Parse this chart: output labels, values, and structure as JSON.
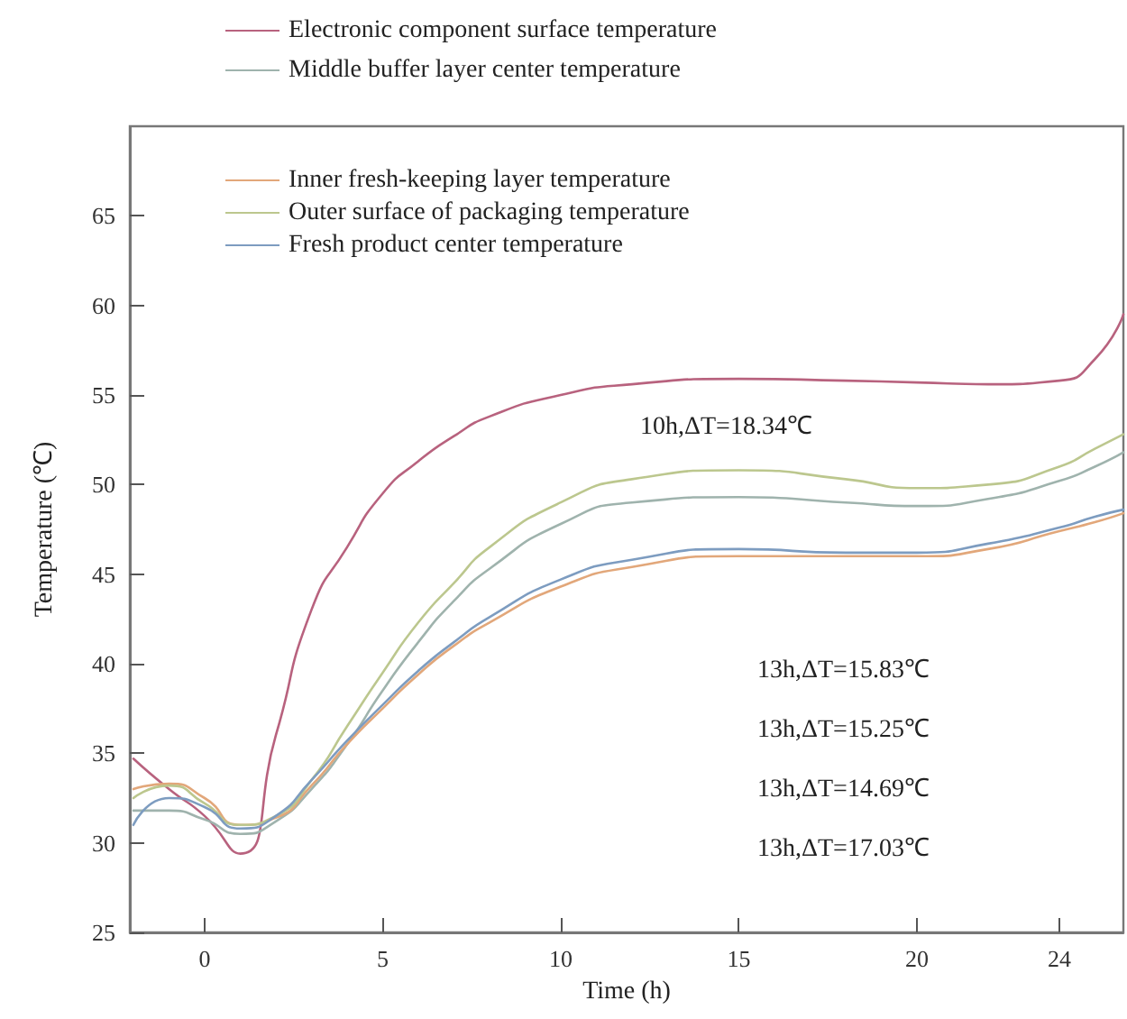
{
  "chart_data": {
    "type": "line",
    "xlabel": "Time (h)",
    "ylabel": "Temperature (℃)",
    "xlim": [
      -2.1,
      25.8
    ],
    "xticks": [
      0,
      5,
      10,
      15,
      20,
      24
    ],
    "ylim": [
      25,
      70
    ],
    "yticks": [
      25,
      30,
      35,
      40,
      45,
      50,
      55,
      60,
      65
    ],
    "grid": false,
    "legend": "top left",
    "marker": "none",
    "line_style": "solid",
    "x": [
      -2,
      -1,
      0,
      1,
      2,
      3,
      4,
      5,
      6,
      7,
      8,
      10,
      12,
      15,
      18,
      20,
      22,
      24,
      25,
      25.8
    ],
    "series": [
      {
        "name": "Electronic component surface temperature",
        "color": "#b8627e",
        "values": [
          34.7,
          33,
          31.5,
          29.4,
          36,
          43,
          46.5,
          49.5,
          51.3,
          52.7,
          53.8,
          55,
          55.6,
          55.9,
          55.8,
          55.7,
          55.6,
          55.8,
          57,
          59.5
        ]
      },
      {
        "name": "Middle buffer layer center temperature",
        "color": "#9fb3ad",
        "values": [
          31.8,
          31.8,
          31.3,
          30.5,
          31.2,
          33,
          35.5,
          38.5,
          41.2,
          43.5,
          45.3,
          47.8,
          49,
          49.3,
          49,
          48.8,
          49.2,
          50.2,
          51,
          51.8
        ]
      },
      {
        "name": "Inner fresh-keeping layer temperature",
        "color": "#e2a77a",
        "values": [
          33,
          33.3,
          32.5,
          31,
          31.4,
          33.2,
          35.5,
          37.5,
          39.4,
          41,
          42.3,
          44.3,
          45.4,
          46,
          46,
          46,
          46.4,
          47.4,
          47.9,
          48.4
        ]
      },
      {
        "name": "Outer surface of packaging temperature",
        "color": "#bcc78e",
        "values": [
          32.5,
          33.2,
          32.2,
          31,
          31.5,
          33.5,
          36.5,
          39.5,
          42.3,
          44.5,
          46.5,
          49,
          50.3,
          50.8,
          50.3,
          49.8,
          50,
          51,
          52,
          52.8
        ]
      },
      {
        "name": "Fresh product center temperature",
        "color": "#7d9cc0",
        "values": [
          31,
          32.5,
          32,
          30.8,
          31.5,
          33.5,
          35.7,
          37.7,
          39.6,
          41.2,
          42.6,
          44.7,
          45.8,
          46.4,
          46.2,
          46.2,
          46.7,
          47.6,
          48.2,
          48.6
        ]
      }
    ],
    "annotations": [
      "10h,ΔT=18.34℃",
      "13h,ΔT=15.83℃",
      "13h,ΔT=15.25℃",
      "13h,ΔT=14.69℃",
      "13h,ΔT=17.03℃"
    ]
  }
}
